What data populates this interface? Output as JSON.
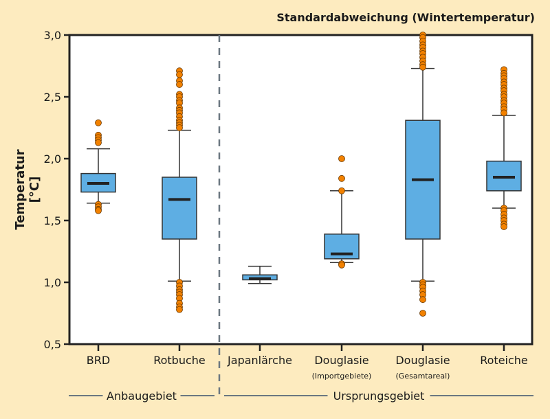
{
  "chart_data": {
    "type": "boxplot",
    "title": "Standardabweichung (Wintertemperatur)",
    "ylabel": "Temperatur [°C]",
    "ylim": [
      0.5,
      3.0
    ],
    "yticks": [
      "0,5",
      "1,0",
      "1,5",
      "2,0",
      "2,5",
      "3,0"
    ],
    "grid": false,
    "colors": {
      "box": "#5eaee3",
      "outlier": "#f28100",
      "background": "#fdebbf",
      "divider": "#6b7780"
    },
    "categories": [
      {
        "label": "BRD",
        "sublabel": "",
        "whisker_low": 1.64,
        "q1": 1.73,
        "median": 1.8,
        "q3": 1.88,
        "whisker_high": 2.08,
        "outliers": [
          2.29,
          2.19,
          2.17,
          2.15,
          2.13,
          1.63,
          1.61,
          1.59,
          1.58
        ]
      },
      {
        "label": "Rotbuche",
        "sublabel": "",
        "whisker_low": 1.01,
        "q1": 1.35,
        "median": 1.67,
        "q3": 1.85,
        "whisker_high": 2.23,
        "outliers": [
          2.71,
          2.68,
          2.63,
          2.6,
          2.52,
          2.5,
          2.47,
          2.45,
          2.41,
          2.39,
          2.37,
          2.34,
          2.31,
          2.29,
          2.27,
          2.25,
          1.0,
          0.97,
          0.94,
          0.92,
          0.9,
          0.87,
          0.83,
          0.8,
          0.78
        ]
      },
      {
        "label": "Japanlärche",
        "sublabel": "",
        "whisker_low": 0.99,
        "q1": 1.02,
        "median": 1.03,
        "q3": 1.06,
        "whisker_high": 1.13,
        "outliers": []
      },
      {
        "label": "Douglasie",
        "sublabel": "(Importgebiete)",
        "whisker_low": 1.16,
        "q1": 1.19,
        "median": 1.23,
        "q3": 1.39,
        "whisker_high": 1.74,
        "outliers": [
          2.0,
          1.84,
          1.74,
          1.15,
          1.14
        ]
      },
      {
        "label": "Douglasie",
        "sublabel": "(Gesamtareal)",
        "whisker_low": 1.01,
        "q1": 1.35,
        "median": 1.83,
        "q3": 2.31,
        "whisker_high": 2.73,
        "outliers": [
          3.0,
          2.98,
          2.95,
          2.92,
          2.9,
          2.87,
          2.85,
          2.82,
          2.79,
          2.76,
          2.74,
          1.0,
          0.98,
          0.96,
          0.93,
          0.9,
          0.86,
          0.75
        ]
      },
      {
        "label": "Roteiche",
        "sublabel": "",
        "whisker_low": 1.6,
        "q1": 1.74,
        "median": 1.85,
        "q3": 1.98,
        "whisker_high": 2.35,
        "outliers": [
          2.72,
          2.69,
          2.67,
          2.65,
          2.62,
          2.6,
          2.57,
          2.55,
          2.52,
          2.5,
          2.47,
          2.45,
          2.42,
          2.4,
          2.37,
          1.6,
          1.58,
          1.55,
          1.52,
          1.5,
          1.47,
          1.45
        ]
      }
    ],
    "groups": [
      {
        "label": "Anbaugebiet",
        "from": 0,
        "to": 1
      },
      {
        "label": "Ursprungsgebiet",
        "from": 2,
        "to": 5
      }
    ]
  }
}
